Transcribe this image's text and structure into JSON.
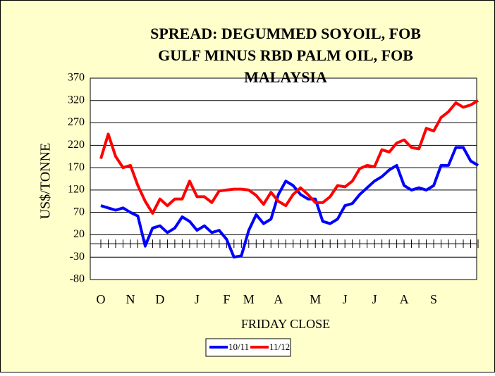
{
  "chart_data": {
    "type": "line",
    "title": [
      "SPREAD: DEGUMMED SOYOIL, FOB",
      "GULF MINUS RBD PALM OIL, FOB",
      "MALAYSIA"
    ],
    "y_label": "US$/TONNE",
    "x_label": "FRIDAY CLOSE",
    "categories": [
      "O",
      null,
      null,
      null,
      "N",
      null,
      null,
      null,
      "D",
      null,
      null,
      null,
      null,
      "J",
      null,
      null,
      null,
      "F",
      null,
      null,
      "M",
      null,
      null,
      null,
      "A",
      null,
      null,
      null,
      null,
      "M",
      null,
      null,
      null,
      "J",
      null,
      null,
      null,
      "J",
      null,
      null,
      null,
      "A",
      null,
      null,
      null,
      "S",
      null,
      null,
      null,
      null,
      null,
      null
    ],
    "series": [
      {
        "name": "10/11",
        "color": "#0000ff",
        "values": [
          85,
          80,
          75,
          80,
          70,
          62,
          -5,
          35,
          40,
          25,
          35,
          60,
          50,
          30,
          40,
          25,
          30,
          10,
          -30,
          -27,
          30,
          65,
          45,
          55,
          110,
          140,
          130,
          110,
          100,
          100,
          50,
          45,
          55,
          85,
          90,
          110,
          125,
          140,
          150,
          165,
          175,
          130,
          120,
          125,
          120,
          130,
          175,
          175,
          215,
          215,
          185,
          175
        ]
      },
      {
        "name": "11/12",
        "color": "#ff0000",
        "values": [
          190,
          245,
          195,
          170,
          175,
          130,
          95,
          68,
          100,
          85,
          100,
          100,
          140,
          105,
          105,
          92,
          118,
          120,
          122,
          122,
          120,
          108,
          88,
          115,
          95,
          85,
          110,
          125,
          110,
          92,
          92,
          105,
          130,
          127,
          140,
          168,
          175,
          172,
          210,
          205,
          225,
          232,
          215,
          212,
          258,
          252,
          282,
          295,
          315,
          305,
          310,
          320
        ]
      }
    ],
    "ylim": [
      -80,
      370
    ],
    "yticks": [
      -80,
      -30,
      20,
      70,
      120,
      170,
      220,
      270,
      320,
      370
    ],
    "grid": true,
    "legend": "bottom"
  }
}
